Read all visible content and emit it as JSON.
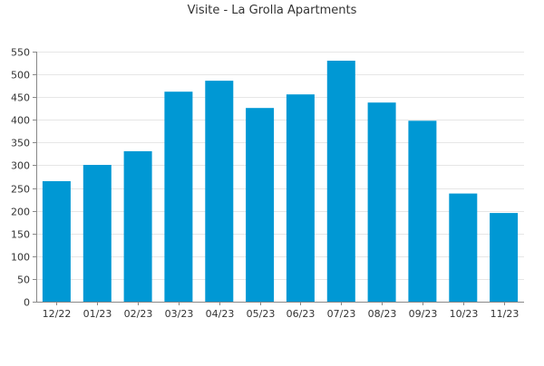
{
  "chart_data": {
    "type": "bar",
    "title": "Visite - La Grolla Apartments",
    "xlabel": "",
    "ylabel": "",
    "categories": [
      "12/22",
      "01/23",
      "02/23",
      "03/23",
      "04/23",
      "05/23",
      "06/23",
      "07/23",
      "08/23",
      "09/23",
      "10/23",
      "11/23"
    ],
    "values": [
      265,
      301,
      331,
      462,
      486,
      426,
      456,
      530,
      438,
      398,
      238,
      195
    ],
    "ylim": [
      0,
      550
    ],
    "yticks": [
      0,
      50,
      100,
      150,
      200,
      250,
      300,
      350,
      400,
      450,
      500,
      550
    ],
    "grid": true,
    "legend": "none",
    "colors": {
      "bar": "#0098d4",
      "grid": "#e6e6e6",
      "axis": "#888888",
      "text": "#333333"
    }
  }
}
